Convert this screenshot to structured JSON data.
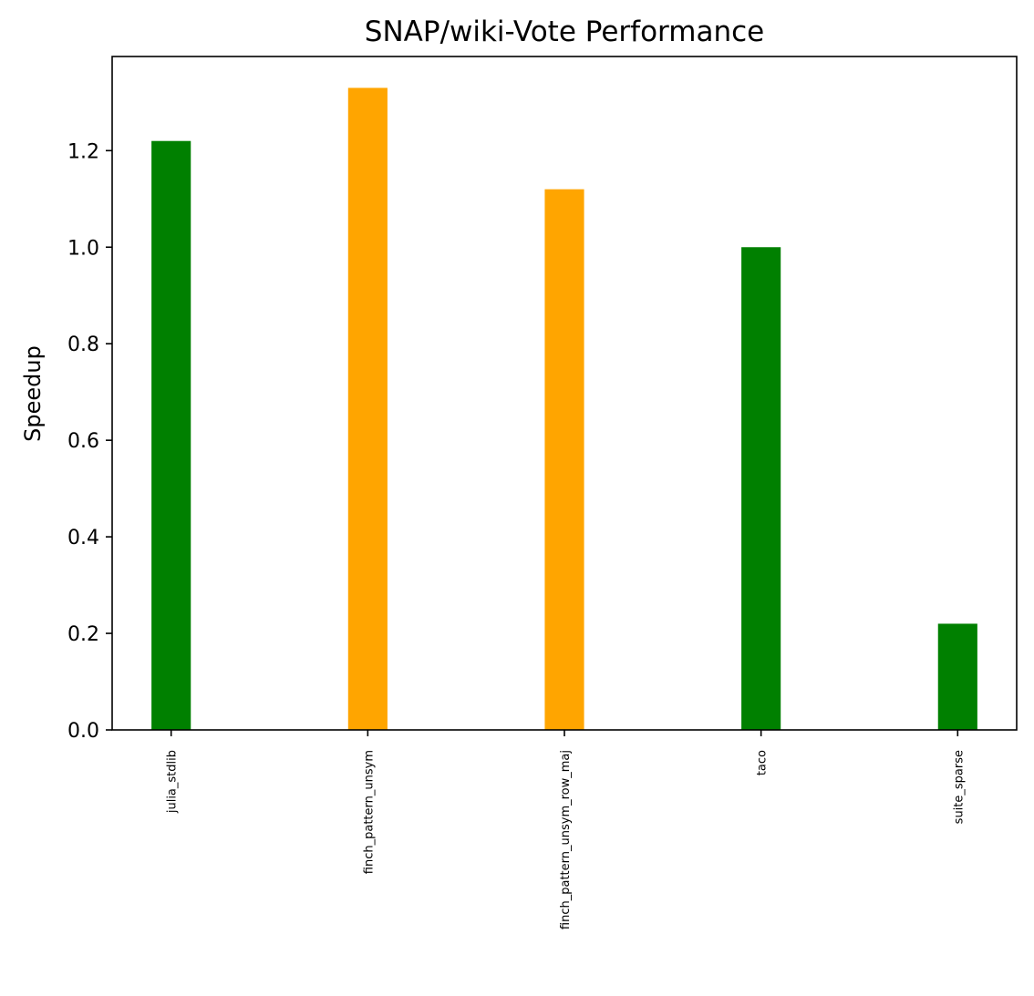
{
  "chart_data": {
    "type": "bar",
    "title": "SNAP/wiki-Vote Performance",
    "xlabel": "",
    "ylabel": "Speedup",
    "categories": [
      "julia_stdlib",
      "finch_pattern_unsym",
      "finch_pattern_unsym_row_maj",
      "taco",
      "suite_sparse"
    ],
    "values": [
      1.22,
      1.33,
      1.12,
      1.0,
      0.22
    ],
    "bar_colors": [
      "#008000",
      "#ffa500",
      "#ffa500",
      "#008000",
      "#008000"
    ],
    "ylim": [
      0,
      1.395
    ],
    "yticks": [
      "0.0",
      "0.2",
      "0.4",
      "0.6",
      "0.8",
      "1.0",
      "1.2"
    ],
    "grid": false,
    "legend": "none"
  }
}
